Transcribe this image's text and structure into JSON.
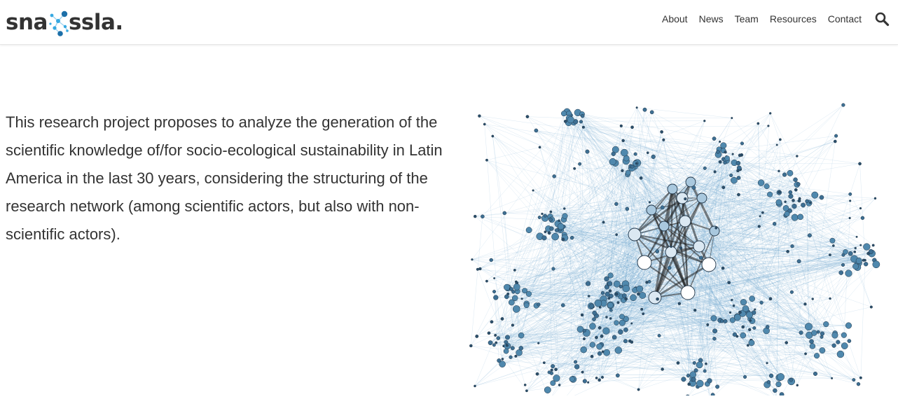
{
  "brand": {
    "left": "sna",
    "right": "ssla.",
    "logo_icon": "network-nodes-icon",
    "colors": {
      "text": "#333333",
      "accent_dark": "#1c6fa8",
      "accent_light": "#37a9e1"
    }
  },
  "nav": {
    "items": [
      {
        "label": "About"
      },
      {
        "label": "News"
      },
      {
        "label": "Team"
      },
      {
        "label": "Resources"
      },
      {
        "label": "Contact"
      }
    ],
    "search_icon": "search-icon"
  },
  "intro": {
    "text": "This research project proposes to analyze the generation of the scientific knowledge of/for socio-ecological sustainability in Latin America in the last 30 years, considering the structuring of the research network (among scientific actors, but also with non-scientific actors)."
  },
  "network": {
    "image": "network-graph",
    "colors": {
      "edge": "#5b9bc9",
      "node_fill": "#4f88ad",
      "node_dark": "#2b4f6b",
      "node_light": "#e9f1f7",
      "hub_edge": "#222222"
    }
  }
}
